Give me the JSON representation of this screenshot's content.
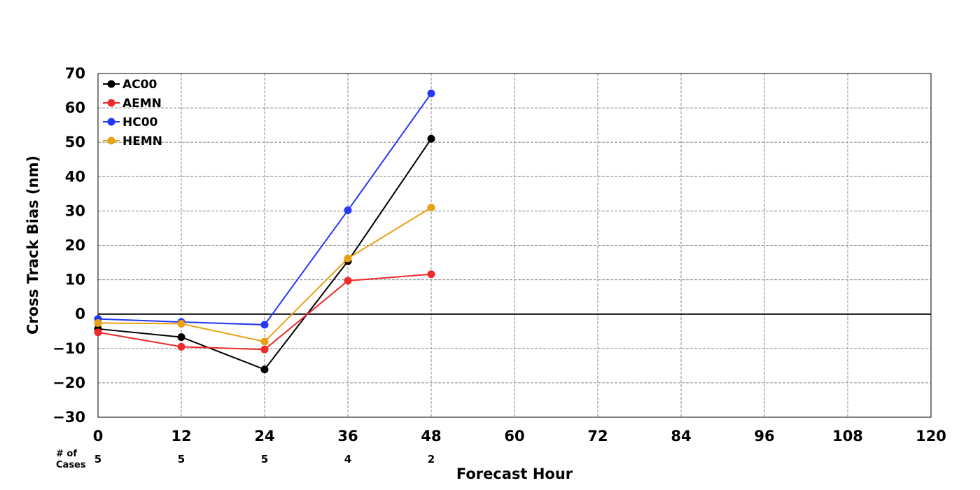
{
  "chart_data": {
    "type": "line",
    "title": "",
    "xlabel": "Forecast Hour",
    "ylabel": "Cross Track Bias (nm)",
    "xlim": [
      0,
      120
    ],
    "ylim": [
      -30,
      70
    ],
    "xticks": [
      0,
      12,
      24,
      36,
      48,
      60,
      72,
      84,
      96,
      108,
      120
    ],
    "yticks": [
      -30,
      -20,
      -10,
      0,
      10,
      20,
      30,
      40,
      50,
      60,
      70
    ],
    "grid": true,
    "legend_position": "top-left",
    "x": [
      0,
      12,
      24,
      36,
      48
    ],
    "series": [
      {
        "name": "AC00",
        "color": "#000000",
        "values": [
          -4.3,
          -6.7,
          -16.1,
          15.4,
          51.0
        ]
      },
      {
        "name": "AEMN",
        "color": "#ee2a2a",
        "values": [
          -5.3,
          -9.5,
          -10.3,
          9.7,
          11.6
        ]
      },
      {
        "name": "HC00",
        "color": "#2438f5",
        "values": [
          -1.4,
          -2.3,
          -3.1,
          30.2,
          64.2
        ]
      },
      {
        "name": "HEMN",
        "color": "#e8a115",
        "values": [
          -2.6,
          -2.8,
          -8.0,
          16.2,
          31.0
        ]
      }
    ],
    "cases": {
      "label_line1": "# of",
      "label_line2": "Cases",
      "values": [
        "5",
        "5",
        "5",
        "4",
        "2"
      ]
    }
  }
}
